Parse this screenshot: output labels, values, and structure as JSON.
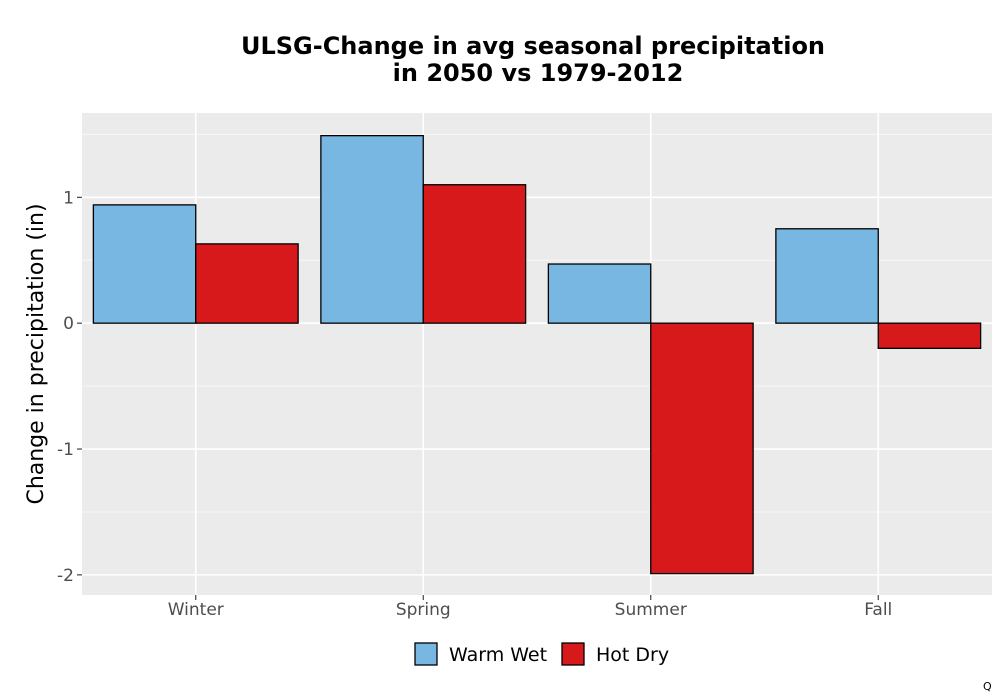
{
  "chart_data": {
    "type": "bar",
    "title_lines": [
      "ULSG-Change in avg seasonal precipitation",
      "in 2050 vs 1979-2012"
    ],
    "xlabel": "",
    "ylabel": "Change in precipitation (in)",
    "categories": [
      "Winter",
      "Spring",
      "Summer",
      "Fall"
    ],
    "series": [
      {
        "name": "Warm Wet",
        "color": "#77b7e2",
        "values": [
          0.94,
          1.49,
          0.47,
          0.75
        ]
      },
      {
        "name": "Hot Dry",
        "color": "#d7191c",
        "values": [
          0.63,
          1.1,
          -1.99,
          -0.2
        ]
      }
    ],
    "ylim": [
      -2.16,
      1.67
    ],
    "yticks": [
      -2,
      -1,
      0,
      1
    ],
    "ytick_labels": [
      "-2",
      "-1",
      "0",
      "1"
    ],
    "grid": true,
    "panel_background": "#ebebeb",
    "bar_outline": "#000000",
    "legend_position": "bottom"
  },
  "corner_mark": "Q"
}
